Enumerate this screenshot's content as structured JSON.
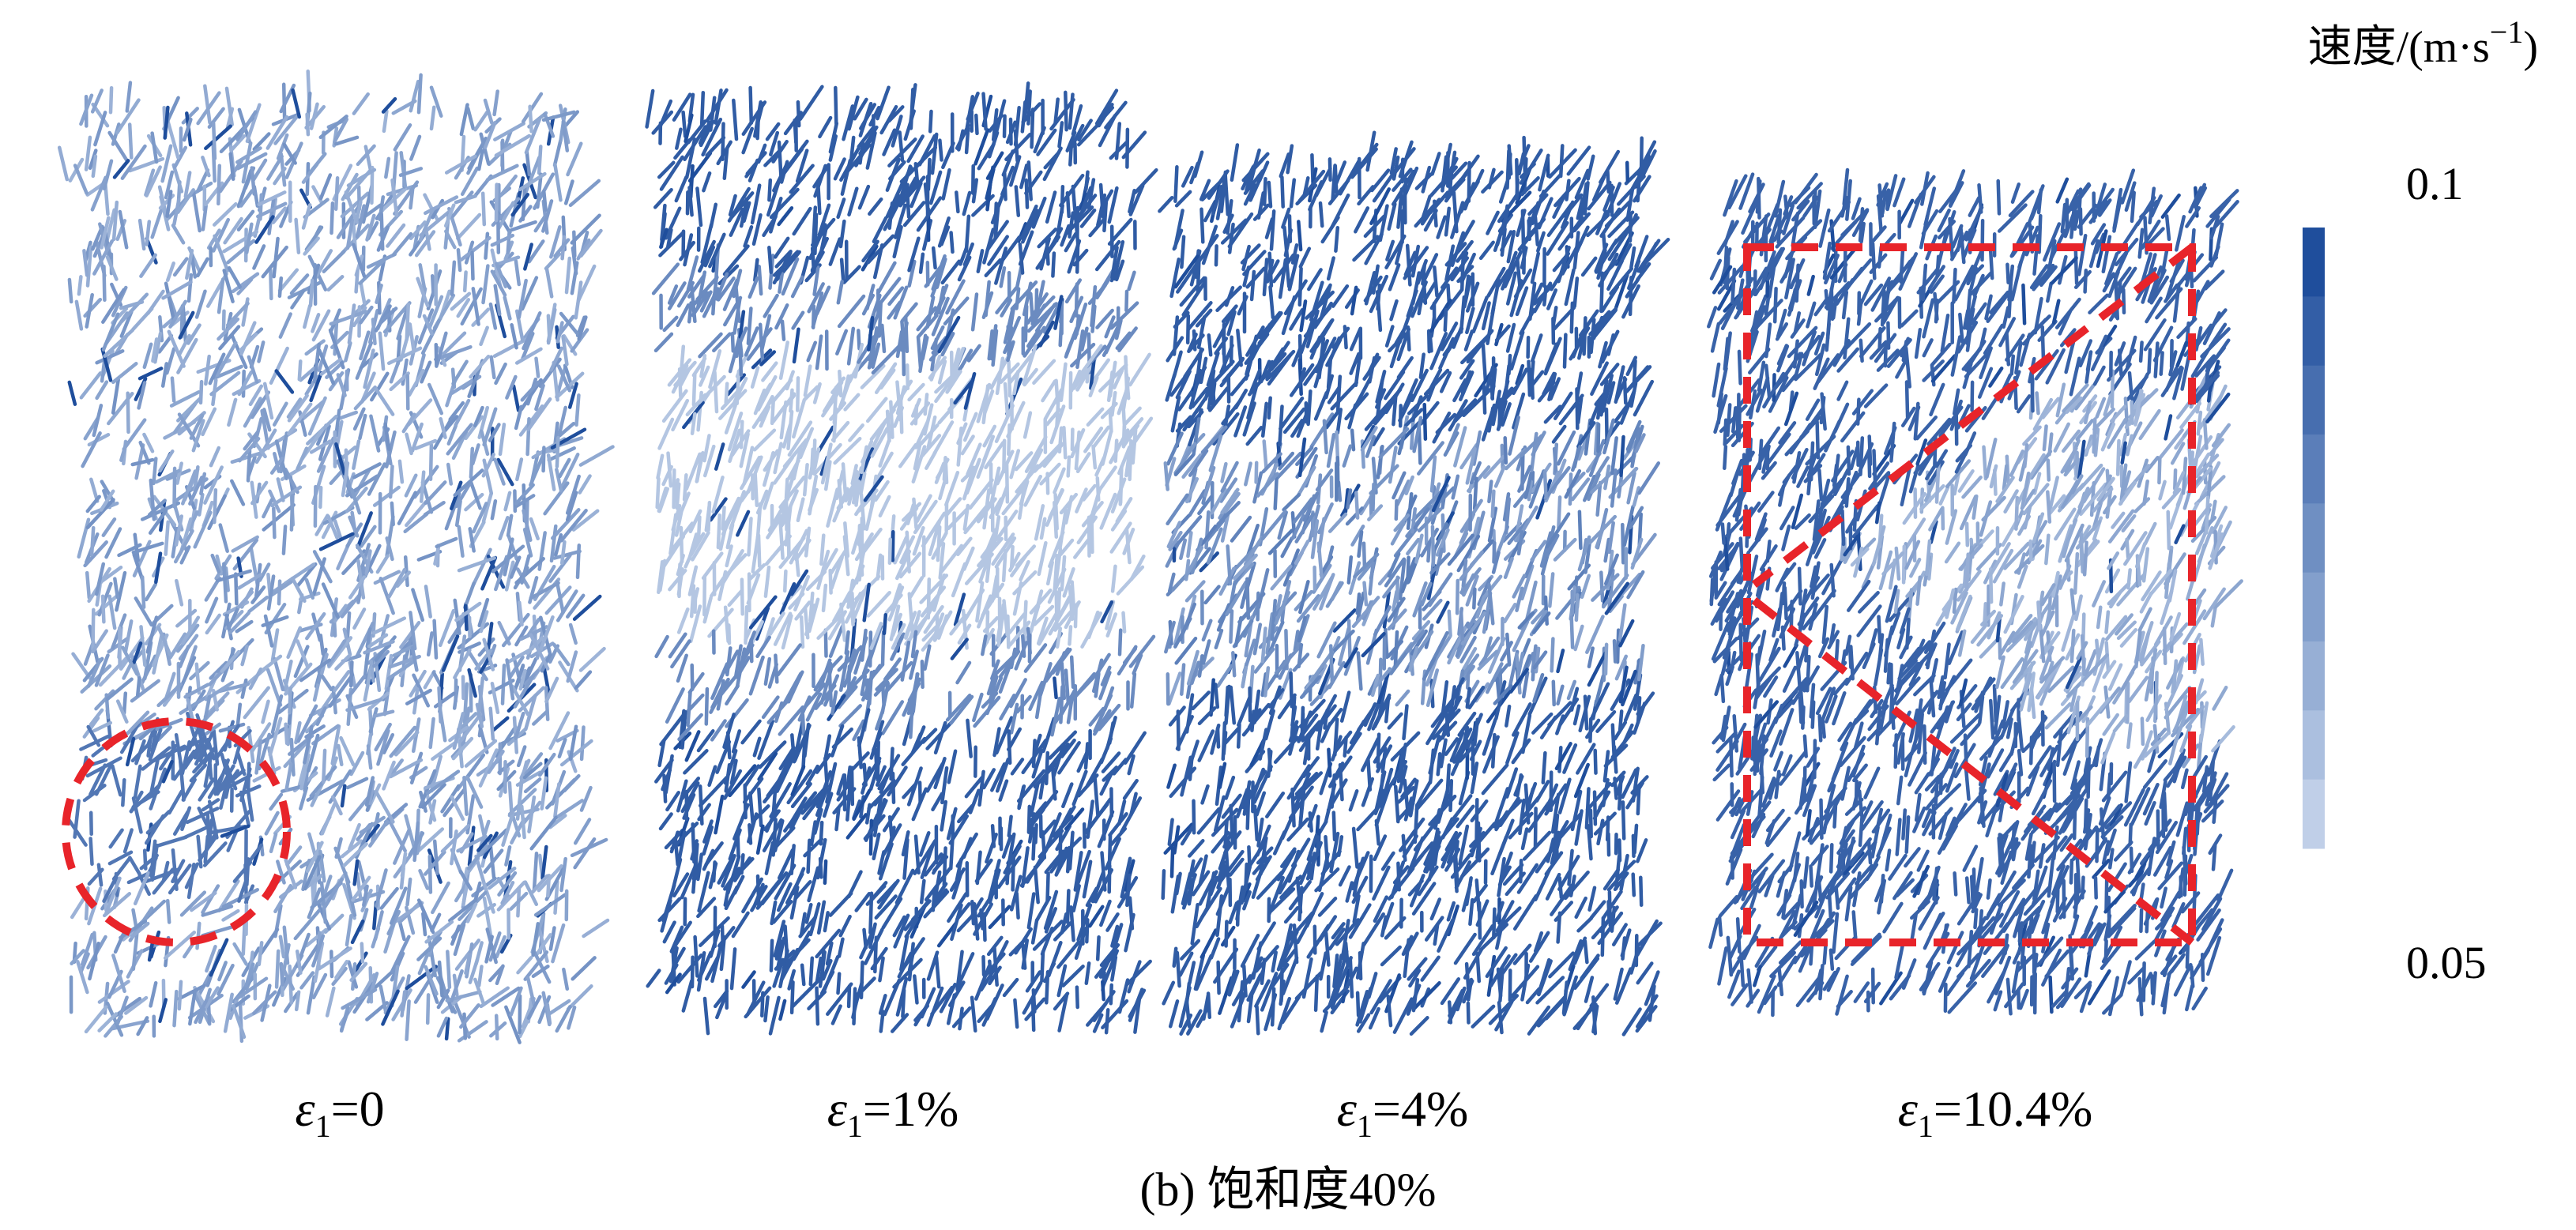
{
  "colorbar": {
    "title": {
      "main": "速度/(m·s",
      "superscript": "−1",
      "end": ")"
    },
    "max": 0.1,
    "min": 0.05
  },
  "panels": [
    {
      "symbol": "ε",
      "subscript": "1",
      "text": "=0"
    },
    {
      "symbol": "ε",
      "subscript": "1",
      "text": "=1%"
    },
    {
      "symbol": "ε",
      "subscript": "1",
      "text": "=4%"
    },
    {
      "symbol": "ε",
      "subscript": "1",
      "text": "=10.4%"
    }
  ],
  "caption": "(b) 饱和度40%"
}
